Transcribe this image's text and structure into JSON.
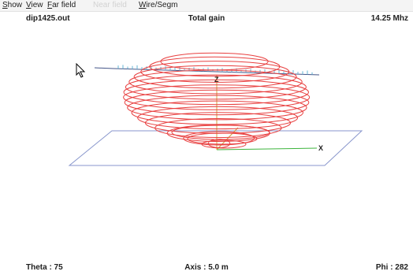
{
  "menu": {
    "show": {
      "mnemonic": "S",
      "rest": "how"
    },
    "view": {
      "mnemonic": "V",
      "rest": "iew"
    },
    "farfield": {
      "mnemonic": "F",
      "rest": "ar field"
    },
    "nearfield": {
      "label": "Near field"
    },
    "wire": {
      "mnemonic": "W",
      "rest": "ire/Segm"
    }
  },
  "header": {
    "filename": "dip1425.out",
    "plot_title": "Total gain",
    "frequency": "14.25 Mhz"
  },
  "plot": {
    "axis_z_label": "Z",
    "axis_x_label": "X",
    "pattern_color": "#e84040",
    "ground_color": "#7f93c8",
    "slice_count": 17
  },
  "footer": {
    "theta": "Theta : 75",
    "axis": "Axis : 5.0 m",
    "phi": "Phi : 282"
  },
  "colors": {
    "x_axis": "#3cb43c",
    "z_axis": "#d2a03c",
    "horizon_dark": "#445588",
    "tick_mark": "#63b6d6"
  }
}
